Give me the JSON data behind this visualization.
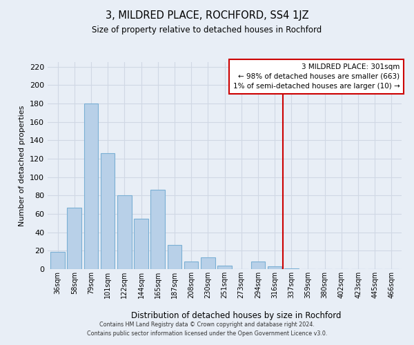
{
  "title": "3, MILDRED PLACE, ROCHFORD, SS4 1JZ",
  "subtitle": "Size of property relative to detached houses in Rochford",
  "xlabel": "Distribution of detached houses by size in Rochford",
  "ylabel": "Number of detached properties",
  "bar_labels": [
    "36sqm",
    "58sqm",
    "79sqm",
    "101sqm",
    "122sqm",
    "144sqm",
    "165sqm",
    "187sqm",
    "208sqm",
    "230sqm",
    "251sqm",
    "273sqm",
    "294sqm",
    "316sqm",
    "337sqm",
    "359sqm",
    "380sqm",
    "402sqm",
    "423sqm",
    "445sqm",
    "466sqm"
  ],
  "bar_heights": [
    19,
    67,
    180,
    126,
    80,
    55,
    86,
    26,
    8,
    13,
    4,
    0,
    8,
    3,
    1,
    0,
    0,
    0,
    0,
    0,
    0
  ],
  "bar_color": "#b8d0e8",
  "bar_edge_color": "#7aafd4",
  "vline_x": 13.5,
  "vline_color": "#cc0000",
  "ylim": [
    0,
    225
  ],
  "yticks": [
    0,
    20,
    40,
    60,
    80,
    100,
    120,
    140,
    160,
    180,
    200,
    220
  ],
  "legend_title": "3 MILDRED PLACE: 301sqm",
  "legend_line1": "← 98% of detached houses are smaller (663)",
  "legend_line2": "1% of semi-detached houses are larger (10) →",
  "legend_box_facecolor": "#ffffff",
  "legend_border_color": "#cc0000",
  "footer_line1": "Contains HM Land Registry data © Crown copyright and database right 2024.",
  "footer_line2": "Contains public sector information licensed under the Open Government Licence v3.0.",
  "background_color": "#e8eef6",
  "grid_color": "#d0d8e4"
}
